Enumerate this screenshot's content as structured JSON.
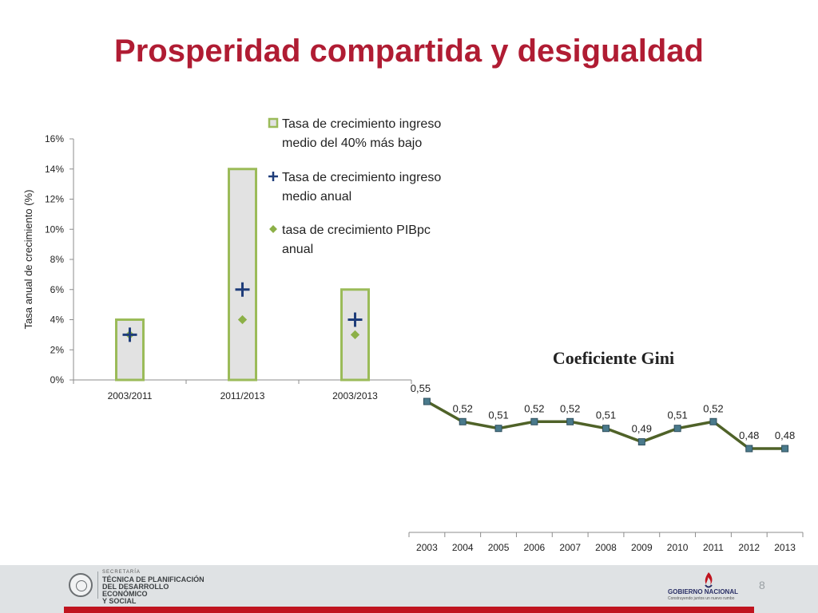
{
  "slide": {
    "title": "Prosperidad compartida y desigualdad",
    "page_number": "8"
  },
  "footer": {
    "left_logo": {
      "label_small": "SECRETARÍA",
      "name_line1": "TÉCNICA DE PLANIFICACIÓN",
      "name_line2": "DEL DESARROLLO ECONÓMICO",
      "name_line3": "Y SOCIAL"
    },
    "right_logo": {
      "name": "GOBIERNO NACIONAL",
      "tagline": "Construyendo juntos un nuevo rumbo"
    }
  },
  "colors": {
    "title": "#b01c33",
    "bar_fill": "#e2e2e2",
    "bar_border": "#9bbb59",
    "cross": "#1f3d7a",
    "diamond": "#8cb047",
    "gini_line": "#4f6228",
    "gini_marker": "#4a7a8c",
    "footer_red": "#c0141f"
  },
  "chart_data": [
    {
      "type": "bar",
      "title": "",
      "ylabel": "Tasa anual de crecimiento (%)",
      "xlabel": "",
      "ylim": [
        0,
        16
      ],
      "yticks": [
        "0%",
        "2%",
        "4%",
        "6%",
        "8%",
        "10%",
        "12%",
        "14%",
        "16%"
      ],
      "categories": [
        "2003/2011",
        "2011/2013",
        "2003/2013"
      ],
      "grid": false,
      "legend_position": "top-right",
      "series": [
        {
          "name": "Tasa de crecimiento ingreso medio del 40% más bajo",
          "name_line1": "Tasa de crecimiento ingreso",
          "name_line2": "medio del 40% más bajo",
          "kind": "bar",
          "values": [
            4,
            14,
            6
          ]
        },
        {
          "name": "Tasa de crecimiento ingreso medio anual",
          "name_line1": "Tasa de crecimiento ingreso",
          "name_line2": "medio anual",
          "kind": "cross",
          "values": [
            3,
            6,
            4
          ]
        },
        {
          "name": "tasa de crecimiento PIBpc anual",
          "name_line1": "tasa de crecimiento PIBpc",
          "name_line2": "anual",
          "kind": "diamond",
          "values": [
            3,
            4,
            3
          ]
        }
      ]
    },
    {
      "type": "line",
      "title": "Coeficiente Gini",
      "x": [
        "2003",
        "2004",
        "2005",
        "2006",
        "2007",
        "2008",
        "2009",
        "2010",
        "2011",
        "2012",
        "2013"
      ],
      "values": [
        0.55,
        0.52,
        0.51,
        0.52,
        0.52,
        0.51,
        0.49,
        0.51,
        0.52,
        0.48,
        0.48
      ],
      "data_labels": [
        "0,55",
        "0,52",
        "0,51",
        "0,52",
        "0,52",
        "0,51",
        "0,49",
        "0,51",
        "0,52",
        "0,48",
        "0,48"
      ],
      "grid": false
    }
  ]
}
